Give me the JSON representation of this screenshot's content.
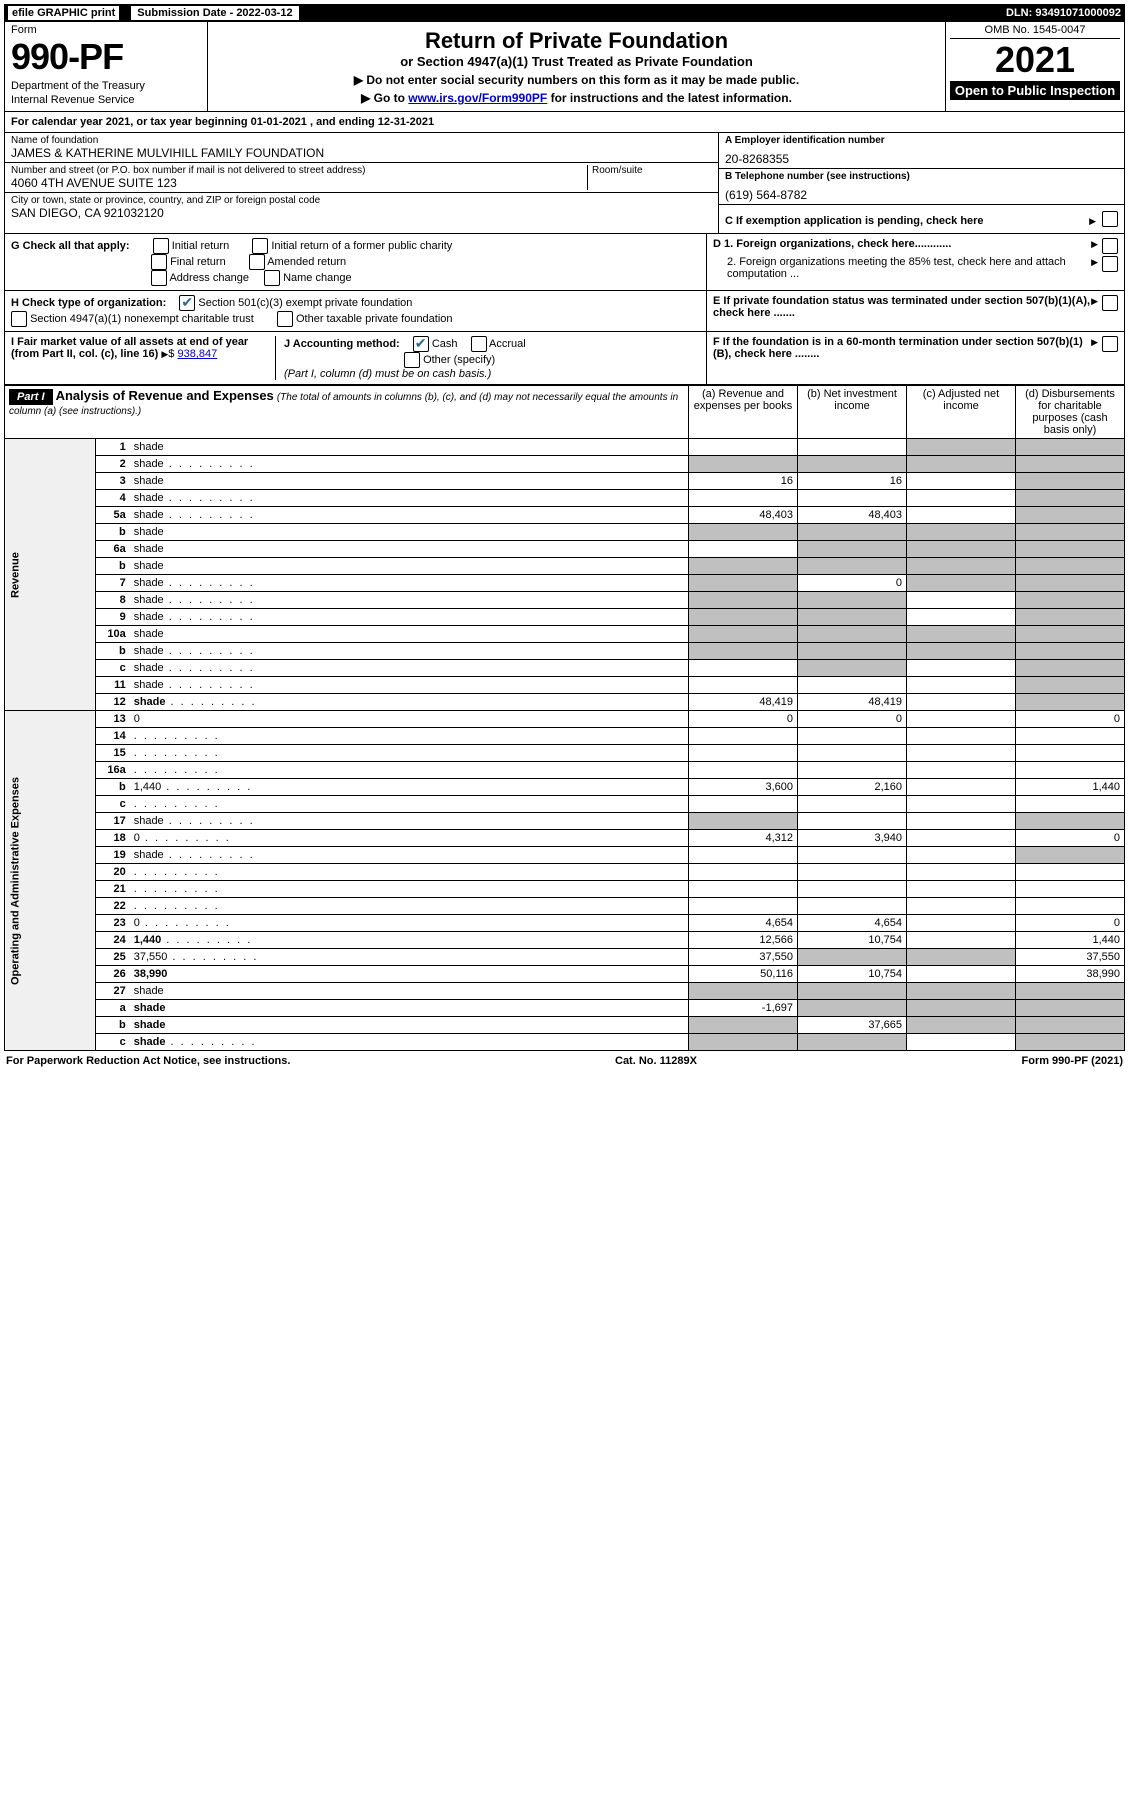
{
  "topbar": {
    "efile": "efile GRAPHIC print",
    "sublabel": "Submission Date - 2022-03-12",
    "dln": "DLN: 93491071000092"
  },
  "header": {
    "form_label": "Form",
    "form_number": "990-PF",
    "dept1": "Department of the Treasury",
    "dept2": "Internal Revenue Service",
    "title": "Return of Private Foundation",
    "subtitle": "or Section 4947(a)(1) Trust Treated as Private Foundation",
    "instr1": "▶ Do not enter social security numbers on this form as it may be made public.",
    "instr2_pre": "▶ Go to ",
    "instr2_link": "www.irs.gov/Form990PF",
    "instr2_post": " for instructions and the latest information.",
    "omb": "OMB No. 1545-0047",
    "year": "2021",
    "open": "Open to Public Inspection"
  },
  "calendar": "For calendar year 2021, or tax year beginning 01-01-2021          , and ending 12-31-2021",
  "name": {
    "label": "Name of foundation",
    "value": "JAMES & KATHERINE MULVIHILL FAMILY FOUNDATION"
  },
  "ein": {
    "label": "A Employer identification number",
    "value": "20-8268355"
  },
  "address": {
    "label": "Number and street (or P.O. box number if mail is not delivered to street address)",
    "value": "4060 4TH AVENUE SUITE 123",
    "room_label": "Room/suite"
  },
  "phone": {
    "label": "B Telephone number (see instructions)",
    "value": "(619) 564-8782"
  },
  "city": {
    "label": "City or town, state or province, country, and ZIP or foreign postal code",
    "value": "SAN DIEGO, CA  921032120"
  },
  "checks": {
    "c_label": "C If exemption application is pending, check here",
    "g_label": "G Check all that apply:",
    "g_initial": "Initial return",
    "g_initial_former": "Initial return of a former public charity",
    "g_final": "Final return",
    "g_amended": "Amended return",
    "g_address": "Address change",
    "g_name": "Name change",
    "d1": "D 1. Foreign organizations, check here............",
    "d2": "2. Foreign organizations meeting the 85% test, check here and attach computation ...",
    "e": "E  If private foundation status was terminated under section 507(b)(1)(A), check here .......",
    "h_label": "H Check type of organization:",
    "h_501c3": "Section 501(c)(3) exempt private foundation",
    "h_4947": "Section 4947(a)(1) nonexempt charitable trust",
    "h_other": "Other taxable private foundation",
    "i_label": "I Fair market value of all assets at end of year (from Part II, col. (c), line 16)",
    "i_value": "938,847",
    "j_label": "J Accounting method:",
    "j_cash": "Cash",
    "j_accrual": "Accrual",
    "j_other": "Other (specify)",
    "j_note": "(Part I, column (d) must be on cash basis.)",
    "f": "F  If the foundation is in a 60-month termination under section 507(b)(1)(B), check here ........"
  },
  "part1": {
    "label": "Part I",
    "title": "Analysis of Revenue and Expenses",
    "note": "(The total of amounts in columns (b), (c), and (d) may not necessarily equal the amounts in column (a) (see instructions).)",
    "col_a": "(a)   Revenue and expenses per books",
    "col_b": "(b)   Net investment income",
    "col_c": "(c)   Adjusted net income",
    "col_d": "(d)  Disbursements for charitable purposes (cash basis only)"
  },
  "sections": {
    "revenue": "Revenue",
    "opadmin": "Operating and Administrative Expenses"
  },
  "rows": [
    {
      "n": "1",
      "d": "shade",
      "a": "",
      "b": "",
      "c": "shade"
    },
    {
      "n": "2",
      "d": "shade",
      "a": "shade",
      "b": "shade",
      "c": "shade",
      "dots": true
    },
    {
      "n": "3",
      "d": "shade",
      "a": "16",
      "b": "16",
      "c": ""
    },
    {
      "n": "4",
      "d": "shade",
      "a": "",
      "b": "",
      "c": "",
      "dots": true
    },
    {
      "n": "5a",
      "d": "shade",
      "a": "48,403",
      "b": "48,403",
      "c": "",
      "dots": true
    },
    {
      "n": "b",
      "d": "shade",
      "a": "shade",
      "b": "shade",
      "c": "shade"
    },
    {
      "n": "6a",
      "d": "shade",
      "a": "",
      "b": "shade",
      "c": "shade"
    },
    {
      "n": "b",
      "d": "shade",
      "a": "shade",
      "b": "shade",
      "c": "shade"
    },
    {
      "n": "7",
      "d": "shade",
      "a": "shade",
      "b": "0",
      "c": "shade",
      "dots": true
    },
    {
      "n": "8",
      "d": "shade",
      "a": "shade",
      "b": "shade",
      "c": "",
      "dots": true
    },
    {
      "n": "9",
      "d": "shade",
      "a": "shade",
      "b": "shade",
      "c": "",
      "dots": true
    },
    {
      "n": "10a",
      "d": "shade",
      "a": "shade",
      "b": "shade",
      "c": "shade"
    },
    {
      "n": "b",
      "d": "shade",
      "a": "shade",
      "b": "shade",
      "c": "shade",
      "dots": true
    },
    {
      "n": "c",
      "d": "shade",
      "a": "",
      "b": "shade",
      "c": "",
      "dots": true
    },
    {
      "n": "11",
      "d": "shade",
      "a": "",
      "b": "",
      "c": "",
      "dots": true
    },
    {
      "n": "12",
      "d": "shade",
      "a": "48,419",
      "b": "48,419",
      "c": "",
      "bold": true,
      "dots": true
    }
  ],
  "rows2": [
    {
      "n": "13",
      "d": "0",
      "a": "0",
      "b": "0",
      "c": ""
    },
    {
      "n": "14",
      "d": "",
      "a": "",
      "b": "",
      "c": "",
      "dots": true
    },
    {
      "n": "15",
      "d": "",
      "a": "",
      "b": "",
      "c": "",
      "dots": true
    },
    {
      "n": "16a",
      "d": "",
      "a": "",
      "b": "",
      "c": "",
      "dots": true
    },
    {
      "n": "b",
      "d": "1,440",
      "a": "3,600",
      "b": "2,160",
      "c": "",
      "dots": true
    },
    {
      "n": "c",
      "d": "",
      "a": "",
      "b": "",
      "c": "",
      "dots": true
    },
    {
      "n": "17",
      "d": "shade",
      "a": "shade",
      "b": "",
      "c": "",
      "dots": true
    },
    {
      "n": "18",
      "d": "0",
      "a": "4,312",
      "b": "3,940",
      "c": "",
      "dots": true
    },
    {
      "n": "19",
      "d": "shade",
      "a": "",
      "b": "",
      "c": "",
      "dots": true
    },
    {
      "n": "20",
      "d": "",
      "a": "",
      "b": "",
      "c": "",
      "dots": true
    },
    {
      "n": "21",
      "d": "",
      "a": "",
      "b": "",
      "c": "",
      "dots": true
    },
    {
      "n": "22",
      "d": "",
      "a": "",
      "b": "",
      "c": "",
      "dots": true
    },
    {
      "n": "23",
      "d": "0",
      "a": "4,654",
      "b": "4,654",
      "c": "",
      "dots": true
    },
    {
      "n": "24",
      "d": "1,440",
      "a": "12,566",
      "b": "10,754",
      "c": "",
      "bold": true,
      "dots": true
    },
    {
      "n": "25",
      "d": "37,550",
      "a": "37,550",
      "b": "shade",
      "c": "shade",
      "dots": true
    },
    {
      "n": "26",
      "d": "38,990",
      "a": "50,116",
      "b": "10,754",
      "c": "",
      "bold": true
    },
    {
      "n": "27",
      "d": "shade",
      "a": "shade",
      "b": "shade",
      "c": "shade"
    },
    {
      "n": "a",
      "d": "shade",
      "a": "-1,697",
      "b": "shade",
      "c": "shade",
      "bold": true
    },
    {
      "n": "b",
      "d": "shade",
      "a": "shade",
      "b": "37,665",
      "c": "shade",
      "bold": true
    },
    {
      "n": "c",
      "d": "shade",
      "a": "shade",
      "b": "shade",
      "c": "",
      "bold": true,
      "dots": true
    }
  ],
  "footer": {
    "left": "For Paperwork Reduction Act Notice, see instructions.",
    "center": "Cat. No. 11289X",
    "right": "Form 990-PF (2021)"
  }
}
